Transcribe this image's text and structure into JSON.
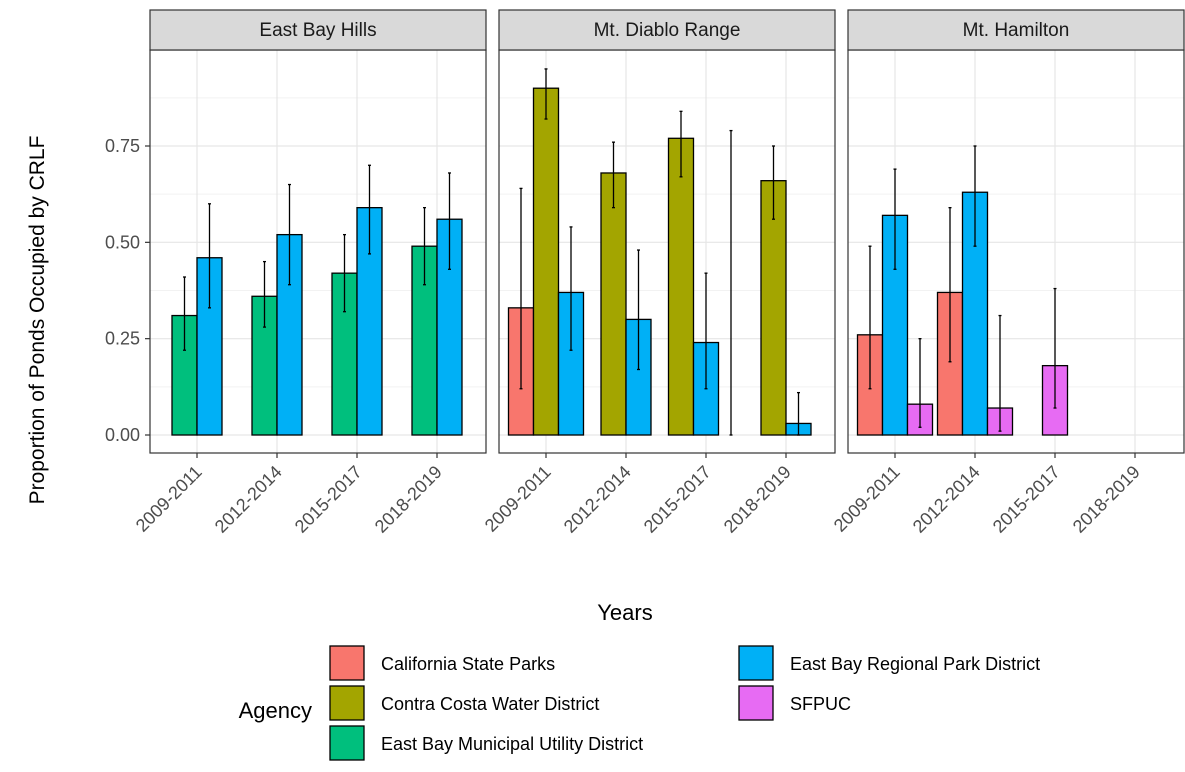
{
  "chart_data": {
    "type": "bar",
    "facets": [
      "East Bay Hills",
      "Mt. Diablo Range",
      "Mt. Hamilton"
    ],
    "categories": [
      "2009-2011",
      "2012-2014",
      "2015-2017",
      "2018-2019"
    ],
    "xlabel": "Years",
    "ylabel": "Proportion of Ponds Occupied by CRLF",
    "ylim": [
      -0.04,
      1.0
    ],
    "yticks": [
      0.0,
      0.25,
      0.5,
      0.75
    ],
    "ytick_labels": [
      "0.00",
      "0.25",
      "0.50",
      "0.75"
    ],
    "grid": true,
    "legend": {
      "title": "Agency",
      "position": "bottom",
      "items": [
        {
          "name": "California State Parks",
          "color": "#F8766D"
        },
        {
          "name": "Contra Costa Water District",
          "color": "#A3A500"
        },
        {
          "name": "East Bay Municipal Utility District",
          "color": "#00BF7D"
        },
        {
          "name": "East Bay Regional Park District",
          "color": "#00B0F6"
        },
        {
          "name": "SFPUC",
          "color": "#E76BF3"
        }
      ]
    },
    "panels": [
      {
        "facet": "East Bay Hills",
        "groups": [
          {
            "category": "2009-2011",
            "bars": [
              {
                "agency": "East Bay Municipal Utility District",
                "value": 0.31,
                "lo": 0.22,
                "hi": 0.41
              },
              {
                "agency": "East Bay Regional Park District",
                "value": 0.46,
                "lo": 0.33,
                "hi": 0.6
              }
            ]
          },
          {
            "category": "2012-2014",
            "bars": [
              {
                "agency": "East Bay Municipal Utility District",
                "value": 0.36,
                "lo": 0.28,
                "hi": 0.45
              },
              {
                "agency": "East Bay Regional Park District",
                "value": 0.52,
                "lo": 0.39,
                "hi": 0.65
              }
            ]
          },
          {
            "category": "2015-2017",
            "bars": [
              {
                "agency": "East Bay Municipal Utility District",
                "value": 0.42,
                "lo": 0.32,
                "hi": 0.52
              },
              {
                "agency": "East Bay Regional Park District",
                "value": 0.59,
                "lo": 0.47,
                "hi": 0.7
              }
            ]
          },
          {
            "category": "2018-2019",
            "bars": [
              {
                "agency": "East Bay Municipal Utility District",
                "value": 0.49,
                "lo": 0.39,
                "hi": 0.59
              },
              {
                "agency": "East Bay Regional Park District",
                "value": 0.56,
                "lo": 0.43,
                "hi": 0.68
              }
            ]
          }
        ]
      },
      {
        "facet": "Mt. Diablo Range",
        "groups": [
          {
            "category": "2009-2011",
            "bars": [
              {
                "agency": "California State Parks",
                "value": 0.33,
                "lo": 0.12,
                "hi": 0.64
              },
              {
                "agency": "Contra Costa Water District",
                "value": 0.9,
                "lo": 0.82,
                "hi": 0.95
              },
              {
                "agency": "East Bay Regional Park District",
                "value": 0.37,
                "lo": 0.22,
                "hi": 0.54
              }
            ]
          },
          {
            "category": "2012-2014",
            "bars": [
              {
                "agency": "Contra Costa Water District",
                "value": 0.68,
                "lo": 0.59,
                "hi": 0.76
              },
              {
                "agency": "East Bay Regional Park District",
                "value": 0.3,
                "lo": 0.17,
                "hi": 0.48
              }
            ]
          },
          {
            "category": "2015-2017",
            "bars": [
              {
                "agency": "Contra Costa Water District",
                "value": 0.77,
                "lo": 0.67,
                "hi": 0.84
              },
              {
                "agency": "East Bay Regional Park District",
                "value": 0.24,
                "lo": 0.12,
                "hi": 0.42
              },
              {
                "agency": "SFPUC",
                "value": 0.0,
                "lo": 0.0,
                "hi": 0.79
              }
            ]
          },
          {
            "category": "2018-2019",
            "bars": [
              {
                "agency": "Contra Costa Water District",
                "value": 0.66,
                "lo": 0.56,
                "hi": 0.75
              },
              {
                "agency": "East Bay Regional Park District",
                "value": 0.03,
                "lo": 0.0,
                "hi": 0.11
              }
            ]
          }
        ]
      },
      {
        "facet": "Mt. Hamilton",
        "groups": [
          {
            "category": "2009-2011",
            "bars": [
              {
                "agency": "California State Parks",
                "value": 0.26,
                "lo": 0.12,
                "hi": 0.49
              },
              {
                "agency": "East Bay Regional Park District",
                "value": 0.57,
                "lo": 0.43,
                "hi": 0.69
              },
              {
                "agency": "SFPUC",
                "value": 0.08,
                "lo": 0.02,
                "hi": 0.25
              }
            ]
          },
          {
            "category": "2012-2014",
            "bars": [
              {
                "agency": "California State Parks",
                "value": 0.37,
                "lo": 0.19,
                "hi": 0.59
              },
              {
                "agency": "East Bay Regional Park District",
                "value": 0.63,
                "lo": 0.49,
                "hi": 0.75
              },
              {
                "agency": "SFPUC",
                "value": 0.07,
                "lo": 0.01,
                "hi": 0.31
              }
            ]
          },
          {
            "category": "2015-2017",
            "bars": [
              {
                "agency": "SFPUC",
                "value": 0.18,
                "lo": 0.07,
                "hi": 0.38
              }
            ]
          },
          {
            "category": "2018-2019",
            "bars": []
          }
        ]
      }
    ]
  }
}
